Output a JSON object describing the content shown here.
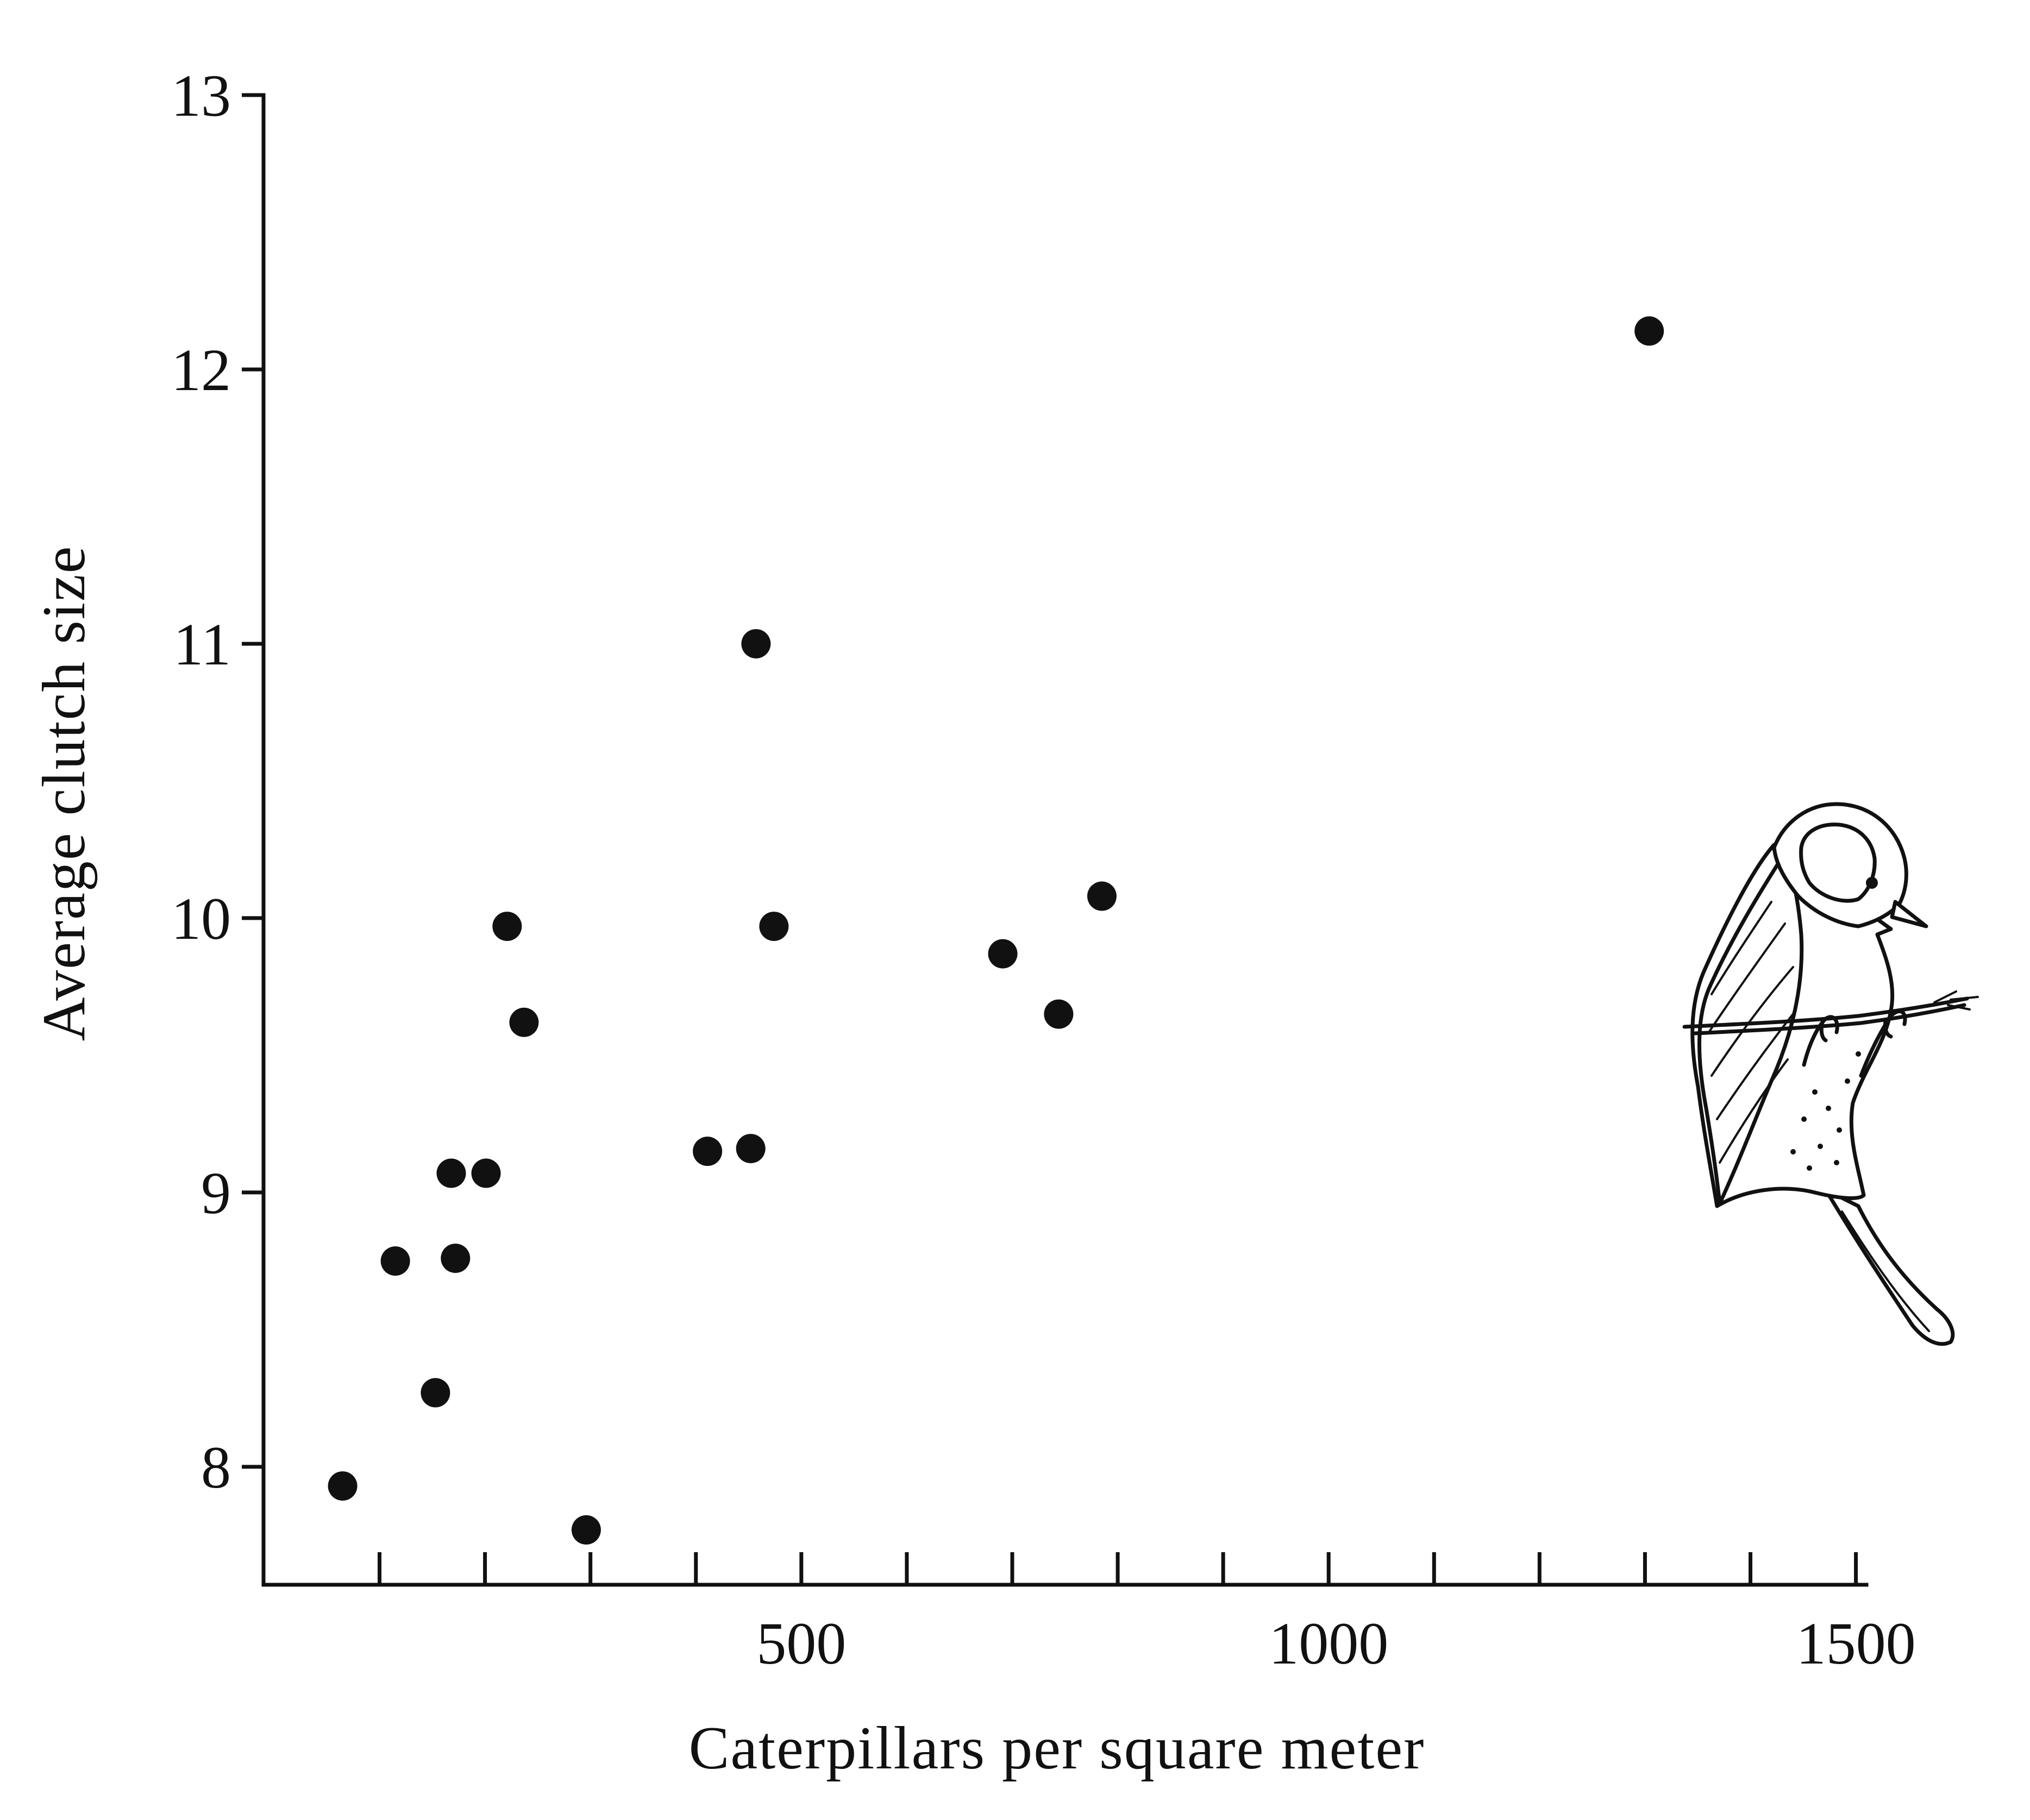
{
  "chart_data": {
    "type": "scatter",
    "title": "",
    "xlabel": "Caterpillars per square meter",
    "ylabel": "Average clutch size",
    "xlim": [
      -10,
      1510
    ],
    "ylim": [
      7.57,
      13
    ],
    "x_ticks": [
      500,
      1000,
      1500
    ],
    "x_tick_labels": [
      "500",
      "1000",
      "1500"
    ],
    "x_minor_ticks": [
      100,
      200,
      300,
      400,
      600,
      700,
      800,
      900,
      1100,
      1200,
      1300,
      1400
    ],
    "y_ticks": [
      8,
      9,
      10,
      11,
      12,
      13
    ],
    "y_tick_labels": [
      "8",
      "9",
      "10",
      "11",
      "12",
      "13"
    ],
    "grid": false,
    "legend": "none",
    "illustration": "great-tit-perched-on-twig",
    "series": [
      {
        "color": "#111111",
        "points": [
          {
            "x": 65,
            "y": 7.93
          },
          {
            "x": 115,
            "y": 8.75
          },
          {
            "x": 153,
            "y": 8.27
          },
          {
            "x": 168,
            "y": 9.07
          },
          {
            "x": 172,
            "y": 8.76
          },
          {
            "x": 201,
            "y": 9.07
          },
          {
            "x": 221,
            "y": 9.97
          },
          {
            "x": 237,
            "y": 9.62
          },
          {
            "x": 296,
            "y": 7.77
          },
          {
            "x": 411,
            "y": 9.15
          },
          {
            "x": 452,
            "y": 9.16
          },
          {
            "x": 457,
            "y": 11.0
          },
          {
            "x": 474,
            "y": 9.97
          },
          {
            "x": 691,
            "y": 9.87
          },
          {
            "x": 744,
            "y": 9.65
          },
          {
            "x": 785,
            "y": 10.08
          },
          {
            "x": 1304,
            "y": 12.14
          }
        ]
      }
    ]
  }
}
